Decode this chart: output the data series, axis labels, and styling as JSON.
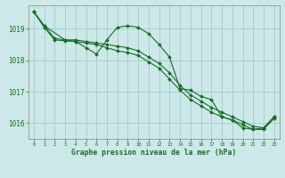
{
  "title": "Graphe pression niveau de la mer (hPa)",
  "background_color": "#cce8e8",
  "grid_color": "#aad0d0",
  "line_color": "#1a6b2a",
  "xlim": [
    -0.5,
    23.5
  ],
  "ylim": [
    1015.5,
    1019.75
  ],
  "yticks": [
    1016,
    1017,
    1018,
    1019
  ],
  "xtick_labels": [
    "0",
    "1",
    "2",
    "3",
    "4",
    "5",
    "6",
    "7",
    "8",
    "9",
    "10",
    "11",
    "12",
    "13",
    "14",
    "15",
    "16",
    "17",
    "18",
    "19",
    "20",
    "21",
    "22",
    "23"
  ],
  "series": [
    {
      "x": [
        0,
        1,
        2,
        3,
        4,
        5,
        6,
        7,
        8,
        9,
        10,
        11,
        12,
        13,
        14,
        15,
        16,
        17,
        18,
        19,
        20,
        21,
        22,
        23
      ],
      "y": [
        1019.55,
        1019.1,
        1018.7,
        1018.65,
        1018.65,
        1018.6,
        1018.55,
        1018.5,
        1018.45,
        1018.4,
        1018.3,
        1018.1,
        1017.9,
        1017.6,
        1017.2,
        1016.9,
        1016.7,
        1016.5,
        1016.35,
        1016.2,
        1016.05,
        1015.9,
        1015.85,
        1016.2
      ]
    },
    {
      "x": [
        0,
        1,
        2,
        3,
        4,
        5,
        6,
        7,
        8,
        9,
        10,
        11,
        12,
        13,
        14,
        15,
        16,
        17,
        18,
        19,
        20,
        21,
        22,
        23
      ],
      "y": [
        1019.55,
        1019.05,
        1018.65,
        1018.62,
        1018.6,
        1018.55,
        1018.5,
        1018.4,
        1018.3,
        1018.25,
        1018.15,
        1017.95,
        1017.75,
        1017.4,
        1017.05,
        1016.75,
        1016.55,
        1016.35,
        1016.2,
        1016.1,
        1015.95,
        1015.8,
        1015.8,
        1016.15
      ]
    },
    {
      "x": [
        0,
        1,
        3,
        4,
        5,
        6,
        7,
        8,
        9,
        10,
        11,
        12,
        13,
        14,
        15,
        16,
        17,
        18,
        19,
        20,
        21,
        22,
        23
      ],
      "y": [
        1019.55,
        1019.1,
        1018.65,
        1018.6,
        1018.4,
        1018.2,
        1018.65,
        1019.05,
        1019.1,
        1019.05,
        1018.85,
        1018.5,
        1018.1,
        1017.1,
        1017.05,
        1016.85,
        1016.75,
        1016.2,
        1016.1,
        1015.85,
        1015.8,
        1015.85,
        1016.2
      ]
    }
  ]
}
